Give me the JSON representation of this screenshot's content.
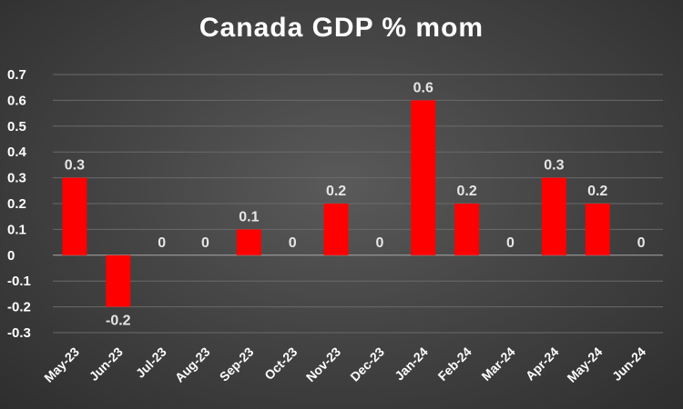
{
  "chart_data": {
    "type": "bar",
    "title": "Canada GDP % mom",
    "xlabel": "",
    "ylabel": "",
    "categories": [
      "May-23",
      "Jun-23",
      "Jul-23",
      "Aug-23",
      "Sep-23",
      "Oct-23",
      "Nov-23",
      "Dec-23",
      "Jan-24",
      "Feb-24",
      "Mar-24",
      "Apr-24",
      "May-24",
      "Jun-24"
    ],
    "values": [
      0.3,
      -0.2,
      0,
      0,
      0.1,
      0,
      0.2,
      0,
      0.6,
      0.2,
      0,
      0.3,
      0.2,
      0
    ],
    "data_labels": [
      "0.3",
      "-0.2",
      "0",
      "0",
      "0.1",
      "0",
      "0.2",
      "0",
      "0.6",
      "0.2",
      "0",
      "0.3",
      "0.2",
      "0"
    ],
    "ylim": [
      -0.3,
      0.7
    ],
    "yticks": [
      0.7,
      0.6,
      0.5,
      0.4,
      0.3,
      0.2,
      0.1,
      0,
      -0.1,
      -0.2,
      -0.3
    ],
    "ytick_labels": [
      "0.7",
      "0.6",
      "0.5",
      "0.4",
      "0.3",
      "0.2",
      "0.1",
      "0",
      "-0.1",
      "-0.2",
      "-0.3"
    ],
    "grid": true,
    "legend": "none",
    "bar_color": "#ff0000"
  }
}
